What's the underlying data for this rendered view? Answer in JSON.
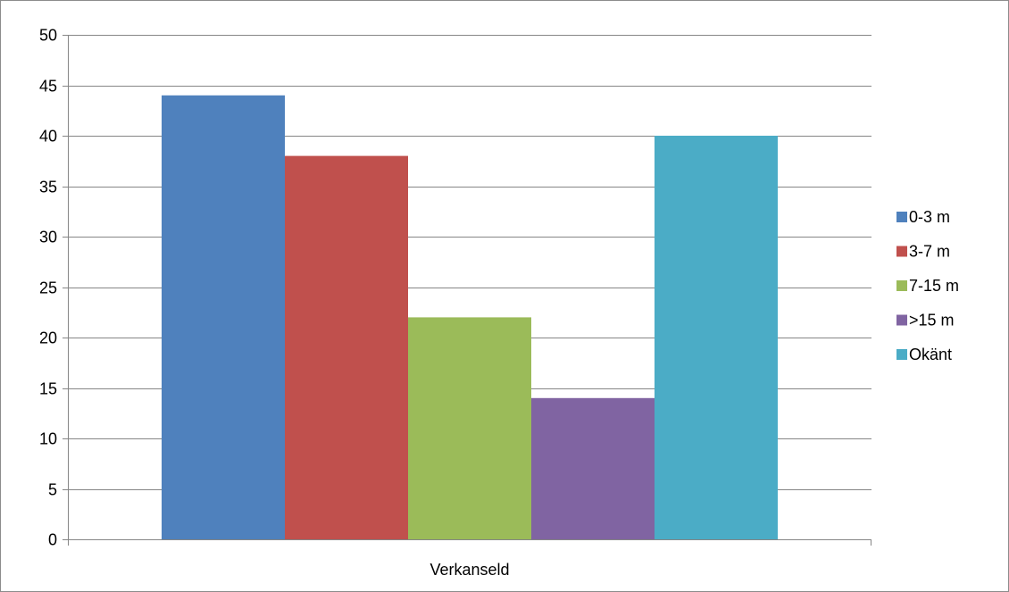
{
  "chart_data": {
    "type": "bar",
    "categories": [
      "Verkanseld"
    ],
    "series": [
      {
        "name": "0-3 m",
        "values": [
          44
        ],
        "color": "#4F81BD"
      },
      {
        "name": "3-7 m",
        "values": [
          38
        ],
        "color": "#C0504D"
      },
      {
        "name": "7-15 m",
        "values": [
          22
        ],
        "color": "#9BBB59"
      },
      {
        "name": ">15 m",
        "values": [
          14
        ],
        "color": "#8064A2"
      },
      {
        "name": "Okänt",
        "values": [
          40
        ],
        "color": "#4BACC6"
      }
    ],
    "ylim": [
      0,
      50
    ],
    "yticks": [
      0,
      5,
      10,
      15,
      20,
      25,
      30,
      35,
      40,
      45,
      50
    ],
    "grid": true,
    "legend_position": "right"
  }
}
